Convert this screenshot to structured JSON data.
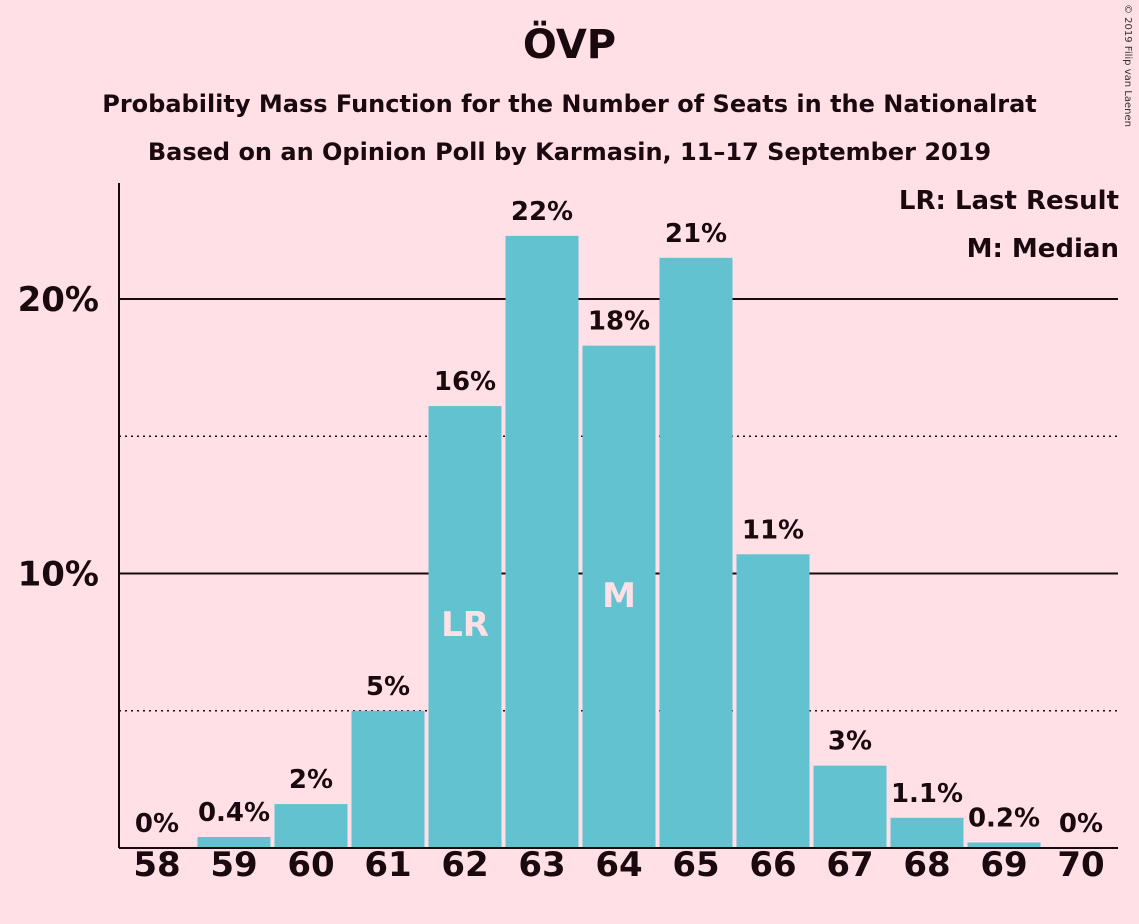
{
  "title": "ÖVP",
  "subtitle_line1": "Probability Mass Function for the Number of Seats in the Nationalrat",
  "subtitle_line2": "Based on an Opinion Poll by Karmasin, 11–17 September 2019",
  "copyright": "© 2019 Filip van Laenen",
  "legend": {
    "last_result": "LR: Last Result",
    "median": "M: Median"
  },
  "colors": {
    "background": "#ffe0e6",
    "bar": "#62c2d0",
    "text": "#1a0a10",
    "bar_marker_text": "#ffe0e6"
  },
  "chart_data": {
    "type": "bar",
    "title": "ÖVP",
    "categories": [
      "58",
      "59",
      "60",
      "61",
      "62",
      "63",
      "64",
      "65",
      "66",
      "67",
      "68",
      "69",
      "70"
    ],
    "values": [
      0,
      0.4,
      1.6,
      5.0,
      16.1,
      22.3,
      18.3,
      21.5,
      10.7,
      3.0,
      1.1,
      0.2,
      0
    ],
    "value_labels": [
      "0%",
      "0.4%",
      "2%",
      "5%",
      "16%",
      "22%",
      "18%",
      "21%",
      "11%",
      "3%",
      "1.1%",
      "0.2%",
      "0%"
    ],
    "bar_markers": {
      "62": "LR",
      "64": "M"
    },
    "ylim": [
      0,
      24
    ],
    "y_ticks_labeled": [
      {
        "value": 10,
        "label": "10%"
      },
      {
        "value": 20,
        "label": "20%"
      }
    ],
    "y_ticks_dotted": [
      5,
      15
    ],
    "grid": true,
    "legend_position": "top-right"
  }
}
